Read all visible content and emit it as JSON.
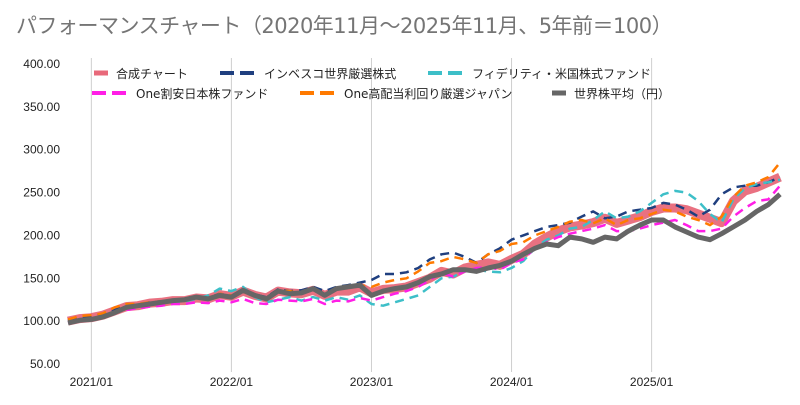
{
  "chart_data": {
    "type": "line",
    "title": "パフォーマンスチャート（2020年11月～2025年11月、5年前＝100）",
    "xlabel": "",
    "ylabel": "",
    "ylim": [
      50,
      400
    ],
    "yticks": [
      "400.00",
      "350.00",
      "300.00",
      "250.00",
      "200.00",
      "150.00",
      "100.00",
      "50.00"
    ],
    "ytick_values": [
      400,
      350,
      300,
      250,
      200,
      150,
      100,
      50
    ],
    "xticks": [
      "2021/01",
      "2022/01",
      "2023/01",
      "2024/01",
      "2025/01"
    ],
    "xtick_month_index": [
      2,
      14,
      26,
      38,
      50
    ],
    "x_start": "2020/11",
    "x_end": "2025/11",
    "grid": "vertical",
    "legend_position": "top",
    "series": [
      {
        "name": "合成チャート",
        "color": "#e8697a",
        "style": "solid-thick",
        "values": [
          100,
          103,
          104,
          107,
          112,
          117,
          118,
          121,
          122,
          124,
          124,
          127,
          126,
          131,
          129,
          135,
          130,
          127,
          135,
          133,
          132,
          136,
          130,
          135,
          135,
          140,
          133,
          137,
          138,
          140,
          145,
          150,
          158,
          155,
          162,
          165,
          168,
          165,
          172,
          178,
          190,
          198,
          205,
          210,
          212,
          215,
          220,
          214,
          218,
          222,
          228,
          232,
          232,
          230,
          225,
          220,
          215,
          240,
          252,
          256,
          262,
          268
        ]
      },
      {
        "name": "インベスコ世界厳選株式",
        "color": "#1f3f7f",
        "style": "dashed",
        "values": [
          101,
          104,
          105,
          108,
          113,
          118,
          119,
          122,
          123,
          125,
          125,
          128,
          127,
          132,
          129,
          136,
          131,
          128,
          137,
          135,
          136,
          140,
          135,
          140,
          142,
          145,
          148,
          155,
          155,
          157,
          162,
          172,
          178,
          180,
          175,
          168,
          178,
          185,
          195,
          200,
          205,
          210,
          212,
          215,
          222,
          228,
          220,
          222,
          228,
          230,
          232,
          238,
          236,
          230,
          222,
          230,
          248,
          256,
          258,
          258,
          262,
          268
        ]
      },
      {
        "name": "フィデリティ・米国株式ファンド",
        "color": "#3dbfc8",
        "style": "dashed",
        "values": [
          99,
          102,
          103,
          106,
          110,
          114,
          115,
          118,
          120,
          122,
          123,
          126,
          130,
          138,
          135,
          140,
          128,
          122,
          125,
          128,
          124,
          128,
          124,
          128,
          125,
          130,
          120,
          118,
          122,
          126,
          130,
          140,
          150,
          152,
          158,
          160,
          158,
          157,
          162,
          170,
          185,
          195,
          200,
          208,
          210,
          218,
          228,
          220,
          222,
          228,
          238,
          248,
          252,
          250,
          240,
          225,
          215,
          242,
          255,
          260,
          262,
          265
        ]
      },
      {
        "name": "One割安日本株ファンド",
        "color": "#ff1ee6",
        "style": "dashed",
        "values": [
          98,
          101,
          102,
          105,
          110,
          113,
          115,
          117,
          118,
          120,
          120,
          122,
          121,
          124,
          122,
          126,
          121,
          120,
          125,
          124,
          123,
          126,
          120,
          124,
          123,
          127,
          124,
          128,
          132,
          135,
          140,
          148,
          156,
          152,
          158,
          162,
          163,
          160,
          168,
          172,
          185,
          192,
          198,
          202,
          205,
          208,
          212,
          205,
          205,
          208,
          212,
          215,
          218,
          212,
          205,
          205,
          208,
          222,
          232,
          240,
          242,
          258
        ]
      },
      {
        "name": "One高配当利回り厳選ジャパン",
        "color": "#ff7a00",
        "style": "dashed",
        "values": [
          102,
          106,
          107,
          109,
          116,
          120,
          120,
          122,
          123,
          125,
          125,
          127,
          126,
          132,
          130,
          134,
          130,
          127,
          136,
          135,
          132,
          137,
          131,
          138,
          140,
          142,
          140,
          145,
          148,
          150,
          158,
          168,
          170,
          175,
          172,
          168,
          178,
          182,
          190,
          192,
          200,
          205,
          210,
          216,
          218,
          214,
          220,
          212,
          218,
          220,
          225,
          230,
          228,
          222,
          218,
          212,
          222,
          245,
          258,
          262,
          268,
          285
        ]
      },
      {
        "name": "世界株平均（円）",
        "color": "#666666",
        "style": "solid-thick",
        "values": [
          98,
          101,
          102,
          105,
          110,
          116,
          118,
          120,
          122,
          124,
          125,
          128,
          126,
          130,
          128,
          136,
          130,
          126,
          135,
          132,
          133,
          138,
          130,
          138,
          140,
          142,
          130,
          135,
          138,
          140,
          145,
          152,
          155,
          160,
          160,
          158,
          162,
          165,
          170,
          178,
          185,
          190,
          188,
          198,
          196,
          192,
          198,
          196,
          205,
          212,
          218,
          218,
          210,
          204,
          198,
          195,
          202,
          210,
          218,
          228,
          236,
          248
        ]
      }
    ]
  }
}
